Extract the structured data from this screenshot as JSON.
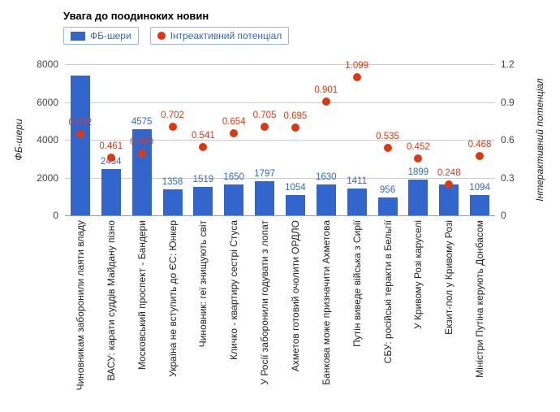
{
  "title": "Увага до поодиноких новин",
  "legend": {
    "items": [
      {
        "label": "ФБ-шери",
        "type": "bar"
      },
      {
        "label": "Інтреактивний потенціал",
        "type": "dot"
      }
    ]
  },
  "axes": {
    "left": {
      "title": "ФБ-шери",
      "ticks": [
        "8000",
        "6000",
        "4000",
        "2000",
        "0"
      ],
      "max": 8000
    },
    "right": {
      "title": "Інтерактивний потенціал",
      "ticks": [
        "1.2",
        "0.9",
        "0.6",
        "0.3",
        "0"
      ],
      "max": 1.2
    }
  },
  "colors": {
    "bar": "#3366cc",
    "dot": "#dc3912",
    "legend_text": "#3366cc",
    "grid": "#cccccc"
  },
  "chart_data": {
    "type": "bar",
    "subtype": "bar + scatter combo, dual axis",
    "title": "Увага до поодиноких новин",
    "xlabel": "",
    "ylabel_left": "ФБ-шери",
    "ylabel_right": "Інтерактивний потенціал",
    "ylim_left": [
      0,
      8000
    ],
    "ylim_right": [
      0,
      1.2
    ],
    "grid": true,
    "legend_position": "top-left",
    "categories": [
      "Чиновникам заборонили лаяти владу",
      "ВАСУ: карати суддів Майдану пізно",
      "Московський проспект - Бандери",
      "Україна не вступить до ЄС: Юнкер",
      "Чиновник: геї знищують світ",
      "Кличко - квартиру сестрі Стуса",
      "У Росії заборонили годувати з лопат",
      "Ахметов готовий очолити ОРДЛО",
      "Банкова може призначити Ахметова",
      "Путін виведе війська з Сирії",
      "СБУ: російські теракти в Бельгії",
      "У Кривому Розі каруселі",
      "Екзит-пол у Кривому Розі",
      "Міністри Путіна керують Донбасом"
    ],
    "series": [
      {
        "name": "ФБ-шери",
        "type": "bar",
        "axis": "left",
        "color": "#3366cc",
        "values": [
          7389,
          2434,
          4575,
          1358,
          1519,
          1650,
          1797,
          1054,
          1630,
          1411,
          956,
          1899,
          1650,
          1094
        ],
        "labels": [
          "7389",
          "2434",
          "4575",
          "1358",
          "1519",
          "1650",
          "1797",
          "1054",
          "1630",
          "1411",
          "956",
          "1899",
          "",
          "1094"
        ]
      },
      {
        "name": "Інтреактивний потенціал",
        "type": "scatter",
        "axis": "right",
        "color": "#dc3912",
        "values": [
          0.642,
          0.461,
          0.49,
          0.702,
          0.541,
          0.654,
          0.705,
          0.695,
          0.901,
          1.099,
          0.535,
          0.452,
          0.248,
          0.468
        ],
        "labels": [
          "0.642",
          "0.461",
          "0.490",
          "0.702",
          "0.541",
          "0.654",
          "0.705",
          "0.695",
          "0.901",
          "1.099",
          "0.535",
          "0.452",
          "0.248",
          "0.468"
        ]
      }
    ]
  }
}
